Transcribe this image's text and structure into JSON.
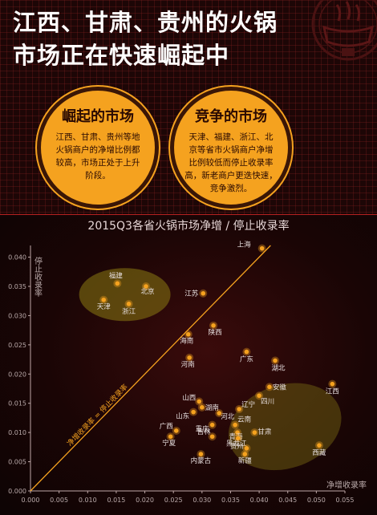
{
  "headline": {
    "line1": "江西、甘肃、贵州的火锅",
    "line2": "市场正在快速崛起中"
  },
  "logo": {
    "icon": "hotpot-logo-icon"
  },
  "callouts": [
    {
      "title": "崛起的市场",
      "body": [
        "江西、甘肃、贵州等地",
        "火锅商户的净增比例都",
        "较高，市场正处于上升",
        "阶段。"
      ]
    },
    {
      "title": "竞争的市场",
      "body": [
        "天津、福建、浙江、北",
        "京等省市火锅商户净增",
        "比例较低而停止收录率",
        "高，新老商户更迭快速，",
        "竞争激烈。"
      ]
    }
  ],
  "colors": {
    "accent": "#f5a21f",
    "point": "#f5a21f",
    "diagonal": "#f5a21f"
  },
  "chart_data": {
    "type": "scatter",
    "title": "2015Q3各省火锅市场净增 / 停止收录率",
    "xlabel": "净增收录率",
    "ylabel": "停止收录率",
    "xlim": [
      0,
      0.055
    ],
    "ylim": [
      0,
      0.042
    ],
    "xticks": [
      "0.000",
      "0.005",
      "0.010",
      "0.015",
      "0.020",
      "0.025",
      "0.030",
      "0.035",
      "0.040",
      "0.045",
      "0.050",
      "0.055"
    ],
    "yticks": [
      "0.000",
      "0.005",
      "0.010",
      "0.015",
      "0.020",
      "0.025",
      "0.030",
      "0.035",
      "0.040"
    ],
    "diagonal_label": "净增收录率 = 停止收录率",
    "points": [
      {
        "name": "上海",
        "x": 0.0405,
        "y": 0.0415
      },
      {
        "name": "福建",
        "x": 0.0152,
        "y": 0.0355
      },
      {
        "name": "北京",
        "x": 0.0202,
        "y": 0.035
      },
      {
        "name": "天津",
        "x": 0.0128,
        "y": 0.0327
      },
      {
        "name": "浙江",
        "x": 0.0172,
        "y": 0.032
      },
      {
        "name": "江苏",
        "x": 0.0302,
        "y": 0.0338
      },
      {
        "name": "陕西",
        "x": 0.032,
        "y": 0.0283
      },
      {
        "name": "海南",
        "x": 0.0276,
        "y": 0.0268
      },
      {
        "name": "广东",
        "x": 0.0378,
        "y": 0.0238
      },
      {
        "name": "河南",
        "x": 0.0278,
        "y": 0.0228
      },
      {
        "name": "湖北",
        "x": 0.0428,
        "y": 0.0223
      },
      {
        "name": "江西",
        "x": 0.0528,
        "y": 0.0183
      },
      {
        "name": "安徽",
        "x": 0.0418,
        "y": 0.0178
      },
      {
        "name": "四川",
        "x": 0.04,
        "y": 0.0163
      },
      {
        "name": "山西",
        "x": 0.0295,
        "y": 0.0153
      },
      {
        "name": "湖南",
        "x": 0.03,
        "y": 0.0143
      },
      {
        "name": "辽宁",
        "x": 0.0365,
        "y": 0.014
      },
      {
        "name": "山东",
        "x": 0.0285,
        "y": 0.0135
      },
      {
        "name": "河北",
        "x": 0.033,
        "y": 0.0133
      },
      {
        "name": "广西",
        "x": 0.0255,
        "y": 0.0103
      },
      {
        "name": "云南",
        "x": 0.0358,
        "y": 0.0113
      },
      {
        "name": "重庆",
        "x": 0.0318,
        "y": 0.0113
      },
      {
        "name": "甘肃",
        "x": 0.0392,
        "y": 0.01
      },
      {
        "name": "青海",
        "x": 0.0362,
        "y": 0.01
      },
      {
        "name": "宁夏",
        "x": 0.0245,
        "y": 0.0093
      },
      {
        "name": "吉林",
        "x": 0.0318,
        "y": 0.0093
      },
      {
        "name": "黑龙江",
        "x": 0.0363,
        "y": 0.009
      },
      {
        "name": "贵州",
        "x": 0.0378,
        "y": 0.0073
      },
      {
        "name": "西藏",
        "x": 0.0505,
        "y": 0.0078
      },
      {
        "name": "内蒙古",
        "x": 0.0298,
        "y": 0.0063
      },
      {
        "name": "新疆",
        "x": 0.0375,
        "y": 0.0063
      }
    ]
  }
}
